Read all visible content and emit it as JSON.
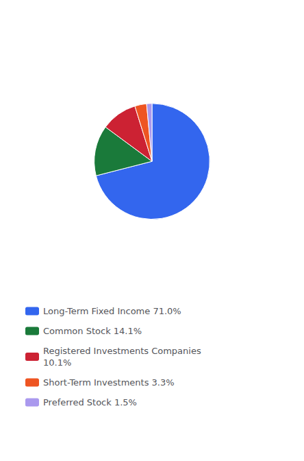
{
  "chart_data": {
    "type": "pie",
    "categories": [
      "Long-Term Fixed Income 71.0%",
      "Common Stock 14.1%",
      "Registered Investments Companies\n10.1%",
      "Short-Term Investments 3.3%",
      "Preferred Stock 1.5%"
    ],
    "values": [
      71.0,
      14.1,
      10.1,
      3.3,
      1.5
    ],
    "colors": [
      "#3366ee",
      "#1a7a3a",
      "#cc2233",
      "#ee5522",
      "#aa99ee"
    ],
    "legend": "bottom"
  }
}
